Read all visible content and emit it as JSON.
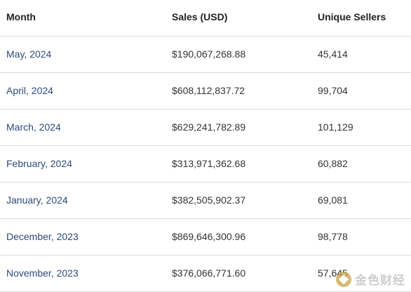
{
  "table": {
    "headers": {
      "month": "Month",
      "sales": "Sales (USD)",
      "sellers": "Unique Sellers"
    },
    "rows": [
      {
        "month": "May, 2024",
        "sales": "$190,067,268.88",
        "sellers": "45,414"
      },
      {
        "month": "April, 2024",
        "sales": "$608,112,837.72",
        "sellers": "99,704"
      },
      {
        "month": "March, 2024",
        "sales": "$629,241,782.89",
        "sellers": "101,129"
      },
      {
        "month": "February, 2024",
        "sales": "$313,971,362.68",
        "sellers": "60,882"
      },
      {
        "month": "January, 2024",
        "sales": "$382,505,902.37",
        "sellers": "69,081"
      },
      {
        "month": "December, 2023",
        "sales": "$869,646,300.96",
        "sellers": "98,778"
      },
      {
        "month": "November, 2023",
        "sales": "$376,066,771.60",
        "sellers": "57,645"
      }
    ]
  },
  "watermark": {
    "text": "金色财经",
    "icon": "jinse-logo-icon"
  }
}
